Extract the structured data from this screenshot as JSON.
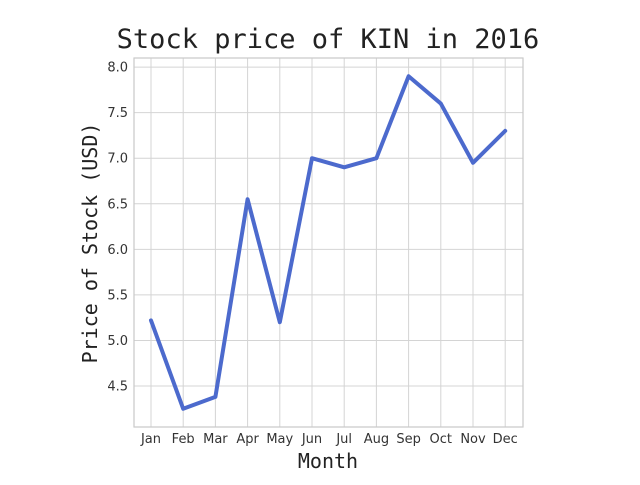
{
  "chart_data": {
    "type": "line",
    "title": "Stock price of KIN in 2016",
    "xlabel": "Month",
    "ylabel": "Price of Stock (USD)",
    "categories": [
      "Jan",
      "Feb",
      "Mar",
      "Apr",
      "May",
      "Jun",
      "Jul",
      "Aug",
      "Sep",
      "Oct",
      "Nov",
      "Dec"
    ],
    "series": [
      {
        "values": [
          5.22,
          4.25,
          4.38,
          6.55,
          5.2,
          7.0,
          6.9,
          7.0,
          7.9,
          7.6,
          6.95,
          7.3
        ],
        "color": "#4c6acd"
      }
    ],
    "yticks": [
      "4.5",
      "5.0",
      "5.5",
      "6.0",
      "6.5",
      "7.0",
      "7.5",
      "8.0"
    ],
    "ylim": [
      4.05,
      8.1
    ],
    "grid": true,
    "legend": "none"
  }
}
